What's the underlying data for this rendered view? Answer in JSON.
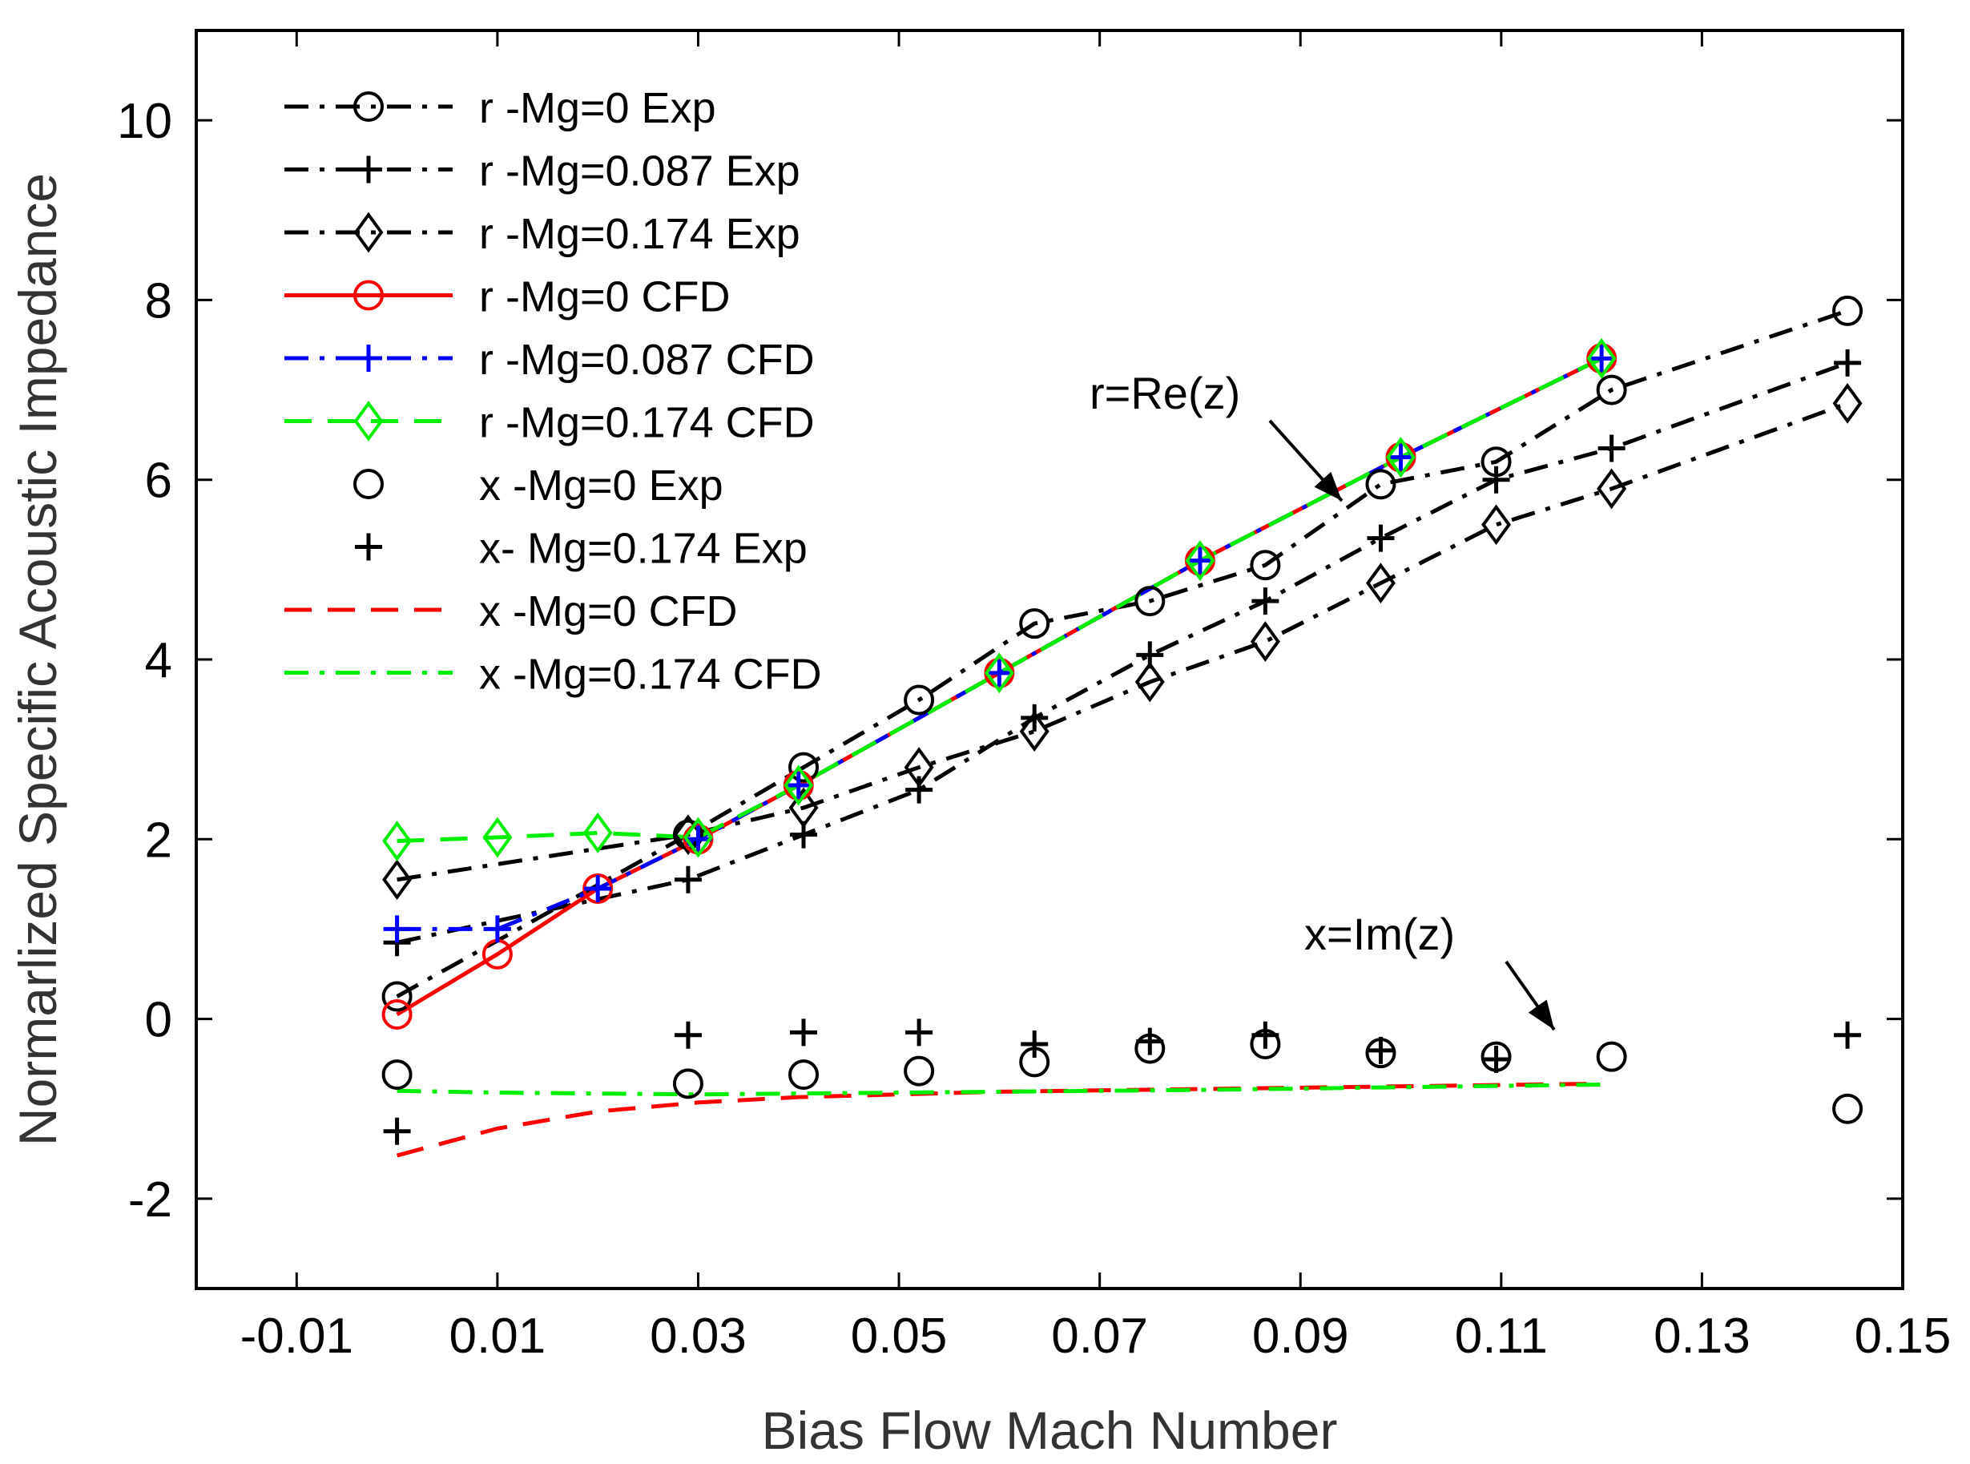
{
  "chart_data": {
    "type": "line",
    "title": "",
    "xlabel": "Bias Flow Mach Number",
    "ylabel": "Normarlized Specific Acoustic Impedance",
    "xlim": [
      -0.02,
      0.15
    ],
    "ylim": [
      -3,
      11
    ],
    "x_ticks": [
      -0.01,
      0.01,
      0.03,
      0.05,
      0.07,
      0.09,
      0.11,
      0.13,
      0.15
    ],
    "x_tick_labels": [
      "-0.01",
      "0.01",
      "0.03",
      "0.05",
      "0.07",
      "0.09",
      "0.11",
      "0.13",
      "0.15"
    ],
    "y_ticks": [
      -2,
      0,
      2,
      4,
      6,
      8,
      10
    ],
    "y_tick_labels": [
      "-2",
      "0",
      "2",
      "4",
      "6",
      "8",
      "10"
    ],
    "grid": false,
    "legend_position": "top-left",
    "series": [
      {
        "name": "r -Mg=0 Exp",
        "color": "#000000",
        "line": "dashdot",
        "marker": "circle",
        "x": [
          0.0,
          0.029,
          0.0405,
          0.052,
          0.0635,
          0.075,
          0.0865,
          0.098,
          0.1095,
          0.121,
          0.1445
        ],
        "y": [
          0.25,
          2.05,
          2.8,
          3.55,
          4.4,
          4.65,
          5.05,
          5.95,
          6.2,
          7.0,
          7.88
        ]
      },
      {
        "name": "r -Mg=0.087 Exp",
        "color": "#000000",
        "line": "dashdot",
        "marker": "plus",
        "x": [
          0.0,
          0.029,
          0.0405,
          0.052,
          0.0635,
          0.075,
          0.0865,
          0.098,
          0.1095,
          0.121,
          0.1445
        ],
        "y": [
          0.85,
          1.55,
          2.05,
          2.55,
          3.35,
          4.05,
          4.65,
          5.35,
          6.0,
          6.35,
          7.3
        ]
      },
      {
        "name": "r -Mg=0.174 Exp",
        "color": "#000000",
        "line": "dashdot",
        "marker": "diamond",
        "x": [
          0.0,
          0.029,
          0.0405,
          0.052,
          0.0635,
          0.075,
          0.0865,
          0.098,
          0.1095,
          0.121,
          0.1445
        ],
        "y": [
          1.55,
          2.05,
          2.35,
          2.8,
          3.2,
          3.75,
          4.2,
          4.85,
          5.5,
          5.9,
          6.85
        ]
      },
      {
        "name": "r -Mg=0 CFD",
        "color": "#ff0000",
        "line": "solid",
        "marker": "circle",
        "x": [
          0.0,
          0.01,
          0.02,
          0.03,
          0.04,
          0.06,
          0.08,
          0.1,
          0.12
        ],
        "y": [
          0.05,
          0.72,
          1.45,
          2.0,
          2.6,
          3.85,
          5.1,
          6.25,
          7.35
        ]
      },
      {
        "name": "r -Mg=0.087 CFD",
        "color": "#0000ff",
        "line": "dashdot",
        "marker": "plus",
        "x": [
          0.0,
          0.01,
          0.02,
          0.03,
          0.04,
          0.06,
          0.08,
          0.1,
          0.12
        ],
        "y": [
          1.0,
          1.0,
          1.45,
          2.0,
          2.6,
          3.85,
          5.1,
          6.25,
          7.35
        ]
      },
      {
        "name": "r -Mg=0.174 CFD",
        "color": "#00ee00",
        "line": "dashed",
        "marker": "diamond",
        "x": [
          0.0,
          0.01,
          0.02,
          0.03,
          0.04,
          0.06,
          0.08,
          0.1,
          0.12
        ],
        "y": [
          1.98,
          2.02,
          2.07,
          2.02,
          2.6,
          3.85,
          5.1,
          6.25,
          7.35
        ]
      },
      {
        "name": "x -Mg=0 Exp",
        "color": "#000000",
        "line": "none",
        "marker": "circle",
        "x": [
          0.0,
          0.029,
          0.0405,
          0.052,
          0.0635,
          0.075,
          0.0865,
          0.098,
          0.1095,
          0.121,
          0.1445
        ],
        "y": [
          -0.62,
          -0.72,
          -0.62,
          -0.58,
          -0.48,
          -0.33,
          -0.28,
          -0.38,
          -0.42,
          -0.42,
          -1.0
        ]
      },
      {
        "name": "x- Mg=0.174 Exp",
        "color": "#000000",
        "line": "none",
        "marker": "plus",
        "x": [
          0.0,
          0.029,
          0.0405,
          0.052,
          0.0635,
          0.075,
          0.0865,
          0.098,
          0.1095,
          0.1445
        ],
        "y": [
          -1.25,
          -0.18,
          -0.15,
          -0.15,
          -0.28,
          -0.25,
          -0.18,
          -0.35,
          -0.45,
          -0.18
        ]
      },
      {
        "name": "x -Mg=0 CFD",
        "color": "#ff0000",
        "line": "dashed",
        "marker": "none",
        "x": [
          0.0,
          0.01,
          0.02,
          0.03,
          0.04,
          0.06,
          0.08,
          0.1,
          0.12
        ],
        "y": [
          -1.52,
          -1.22,
          -1.03,
          -0.93,
          -0.87,
          -0.81,
          -0.78,
          -0.75,
          -0.72
        ]
      },
      {
        "name": "x -Mg=0.174 CFD",
        "color": "#00ee00",
        "line": "dashdot",
        "marker": "none",
        "x": [
          0.0,
          0.01,
          0.02,
          0.03,
          0.04,
          0.06,
          0.08,
          0.1,
          0.12
        ],
        "y": [
          -0.8,
          -0.82,
          -0.83,
          -0.84,
          -0.83,
          -0.81,
          -0.79,
          -0.76,
          -0.73
        ]
      }
    ],
    "annotations": [
      {
        "text": "r=Re(z)",
        "at": [
          0.0945,
          5.85
        ]
      },
      {
        "text": "x=Im(z)",
        "at": [
          0.116,
          -0.15
        ]
      }
    ]
  }
}
